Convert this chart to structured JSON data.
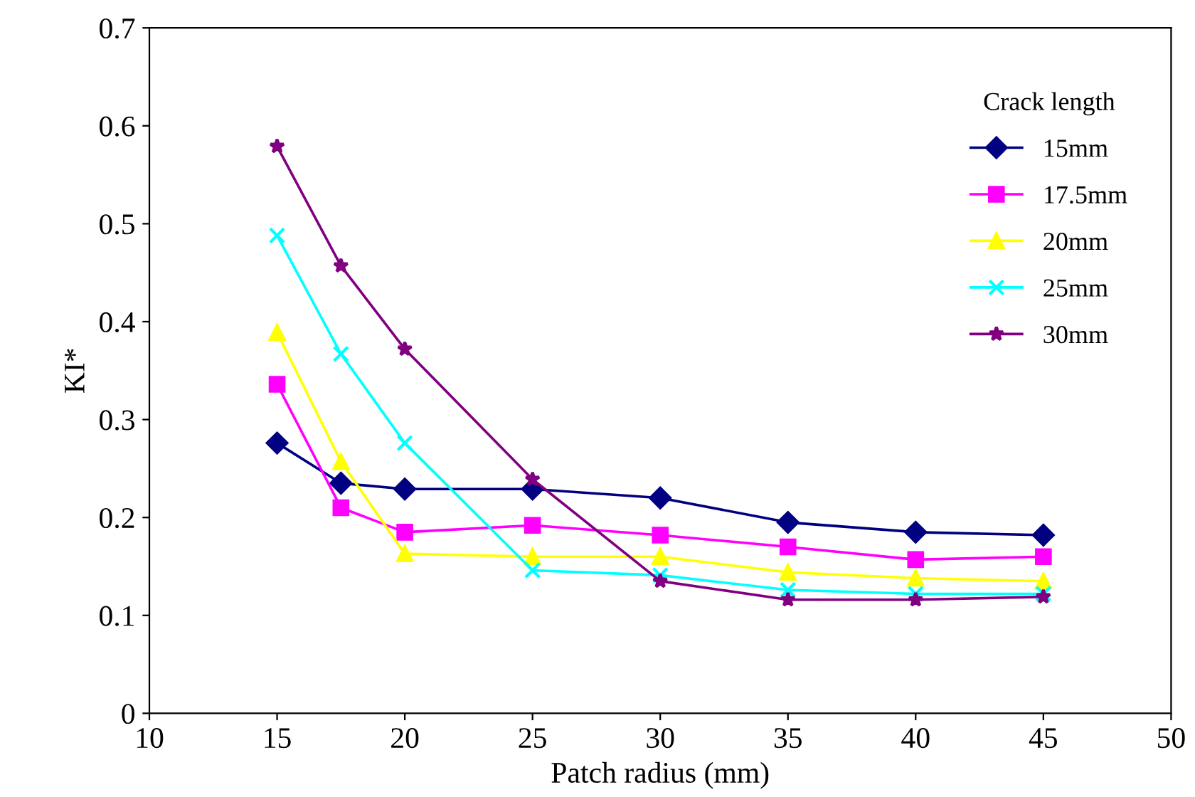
{
  "chart_data": {
    "type": "line",
    "xlabel": "Patch radius (mm)",
    "ylabel": "KI*",
    "legend_title": "Crack length",
    "legend": "top right",
    "grid": false,
    "x": [
      15,
      17.5,
      20,
      25,
      30,
      35,
      40,
      45
    ],
    "xlim": [
      10,
      50
    ],
    "xticks": [
      10,
      15,
      20,
      25,
      30,
      35,
      40,
      45,
      50
    ],
    "ylim": [
      0,
      0.7
    ],
    "yticks": [
      0,
      0.1,
      0.2,
      0.3,
      0.4,
      0.5,
      0.6,
      0.7
    ],
    "series": [
      {
        "name": "15mm",
        "color": "#000080",
        "marker": "diamond",
        "values": [
          0.276,
          0.235,
          0.229,
          0.229,
          0.22,
          0.195,
          0.185,
          0.182
        ]
      },
      {
        "name": "17.5mm",
        "color": "#ff00ff",
        "marker": "square",
        "values": [
          0.336,
          0.21,
          0.185,
          0.192,
          0.182,
          0.17,
          0.157,
          0.16
        ]
      },
      {
        "name": "20mm",
        "color": "#ffff00",
        "marker": "triangle",
        "values": [
          0.389,
          0.257,
          0.163,
          0.16,
          0.16,
          0.144,
          0.138,
          0.135
        ]
      },
      {
        "name": "25mm",
        "color": "#00ffff",
        "marker": "cross",
        "values": [
          0.488,
          0.367,
          0.276,
          0.146,
          0.141,
          0.126,
          0.122,
          0.122
        ]
      },
      {
        "name": "30mm",
        "color": "#800080",
        "marker": "star",
        "values": [
          0.579,
          0.457,
          0.372,
          0.239,
          0.135,
          0.116,
          0.116,
          0.119
        ]
      }
    ]
  }
}
